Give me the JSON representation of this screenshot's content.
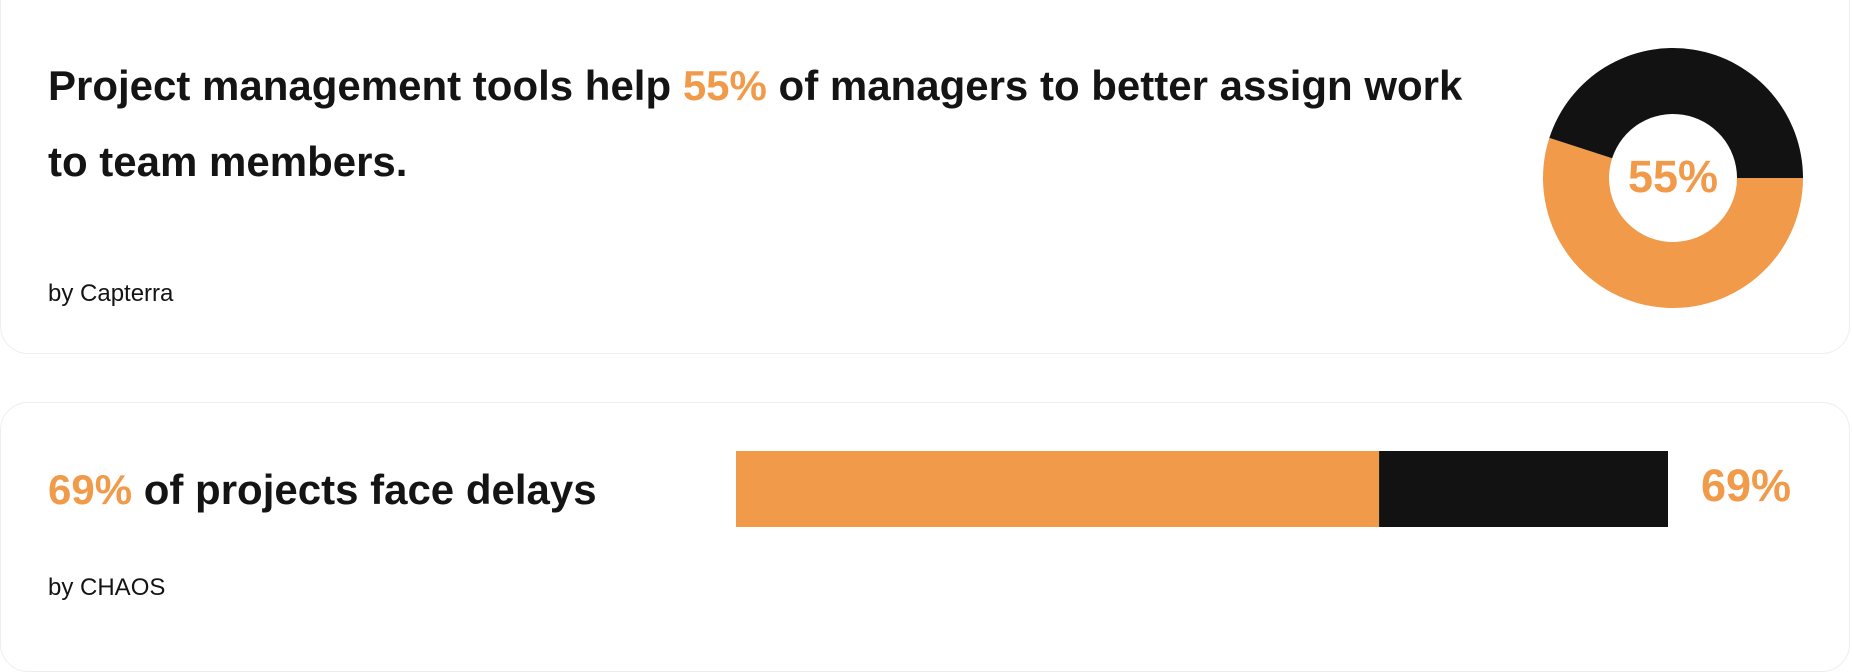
{
  "chart_data": [
    {
      "type": "pie",
      "title_before": "Project management tools help",
      "title_highlight": "55%",
      "title_after": "of managers to better assign work to team members.",
      "source": "by Capterra",
      "values": [
        55,
        45
      ],
      "value_labels": [
        "55%",
        null
      ],
      "colors": [
        "#f09a4a",
        "#121212"
      ]
    },
    {
      "type": "bar",
      "title_highlight": "69%",
      "title_after": "of projects face delays",
      "source": "by CHAOS",
      "values": [
        69,
        31
      ],
      "value_labels": [
        "69%",
        null
      ],
      "colors": [
        "#f09a4a",
        "#121212"
      ]
    }
  ]
}
